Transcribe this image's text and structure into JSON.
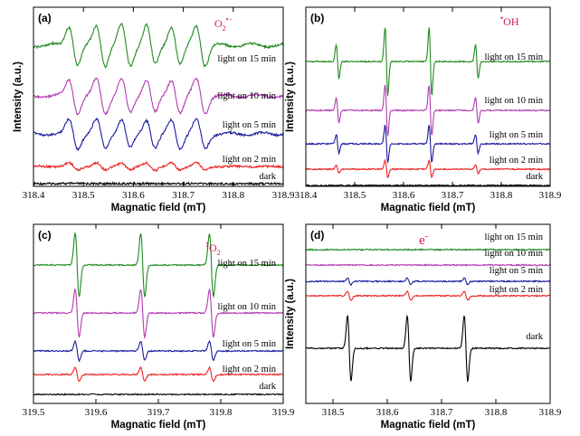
{
  "figure": {
    "colors": {
      "dark": "#000000",
      "light on 2 min": "#ee2222",
      "light on 5 min": "#1a1aa0",
      "light on 10 min": "#b23ab2",
      "light on 15 min": "#1e8a1e",
      "species_label": "#d0145c"
    }
  },
  "chart_data": [
    {
      "panel": "(a)",
      "type": "line",
      "species": "O₂•⁻",
      "species_main": "O",
      "species_sub": "2",
      "species_sup": "•−",
      "xlabel": "Magnatic field (mT)",
      "ylabel": "Intensity (a.u.)",
      "xlim": [
        318.4,
        318.9
      ],
      "xticks": [
        "318.4",
        "318.5",
        "318.6",
        "318.7",
        "318.8",
        "318.9"
      ],
      "xtick_values": [
        318.4,
        318.5,
        318.6,
        318.7,
        318.8,
        318.9
      ],
      "spectrum": "superoxide",
      "lines_mT": [
        318.48,
        318.535,
        318.585,
        318.635,
        318.685,
        318.735
      ],
      "series": [
        {
          "name": "dark",
          "amplitude": 0.0
        },
        {
          "name": "light on 2 min",
          "amplitude": 0.18
        },
        {
          "name": "light on 5 min",
          "amplitude": 0.72
        },
        {
          "name": "light on 10 min",
          "amplitude": 0.85
        },
        {
          "name": "light on 15 min",
          "amplitude": 1.0
        }
      ]
    },
    {
      "panel": "(b)",
      "type": "line",
      "species": "•OH",
      "species_main": "OH",
      "species_sup": "•",
      "xlabel": "Magnatic field (mT)",
      "ylabel": "Intensity (a.u.)",
      "xlim": [
        318.4,
        318.9
      ],
      "xticks": [
        "318.4",
        "318.5",
        "318.6",
        "318.7",
        "318.8",
        "318.9"
      ],
      "xtick_values": [
        318.4,
        318.5,
        318.6,
        318.7,
        318.8,
        318.9
      ],
      "spectrum": "hydroxyl",
      "lines_mT": [
        318.465,
        318.565,
        318.655,
        318.75
      ],
      "line_ratio": [
        1,
        2,
        2,
        1
      ],
      "series": [
        {
          "name": "dark",
          "amplitude": 0.0
        },
        {
          "name": "light on 2 min",
          "amplitude": 0.25
        },
        {
          "name": "light on 5 min",
          "amplitude": 0.55
        },
        {
          "name": "light on 10 min",
          "amplitude": 0.75
        },
        {
          "name": "light on 15 min",
          "amplitude": 1.0
        }
      ]
    },
    {
      "panel": "(c)",
      "type": "line",
      "species": "¹O₂",
      "species_pre": "1",
      "species_main": "O",
      "species_sub": "2",
      "xlabel": "Magnatic field (mT)",
      "ylabel": "",
      "xlim": [
        319.5,
        319.9
      ],
      "xticks": [
        "319.5",
        "319.6",
        "319.7",
        "319.8",
        "319.9"
      ],
      "xtick_values": [
        319.5,
        319.6,
        319.7,
        319.8,
        319.9
      ],
      "spectrum": "singlet_oxygen",
      "lines_mT": [
        319.57,
        319.675,
        319.785
      ],
      "line_ratio": [
        1,
        1,
        1
      ],
      "series": [
        {
          "name": "dark",
          "amplitude": 0.0
        },
        {
          "name": "light on 2 min",
          "amplitude": 0.22
        },
        {
          "name": "light on 5 min",
          "amplitude": 0.3
        },
        {
          "name": "light on 10 min",
          "amplitude": 0.75
        },
        {
          "name": "light on 15 min",
          "amplitude": 1.0
        }
      ]
    },
    {
      "panel": "(d)",
      "type": "line",
      "species": "e⁻",
      "species_main": "e",
      "species_sup": "-",
      "xlabel": "Magnatic field (mT)",
      "ylabel": "Intensity (a.u.)",
      "xlim": [
        318.45,
        318.9
      ],
      "xticks": [
        "318.5",
        "318.6",
        "318.7",
        "318.8",
        "318.9"
      ],
      "xtick_values": [
        318.5,
        318.6,
        318.7,
        318.8,
        318.9
      ],
      "spectrum": "electron",
      "lines_mT": [
        318.53,
        318.64,
        318.745
      ],
      "line_ratio": [
        1,
        1,
        1
      ],
      "series": [
        {
          "name": "dark",
          "amplitude": 1.0
        },
        {
          "name": "light on 2 min",
          "amplitude": 0.14
        },
        {
          "name": "light on 5 min",
          "amplitude": 0.1
        },
        {
          "name": "light on 10 min",
          "amplitude": 0.0
        },
        {
          "name": "light on 15 min",
          "amplitude": 0.0
        }
      ]
    }
  ]
}
